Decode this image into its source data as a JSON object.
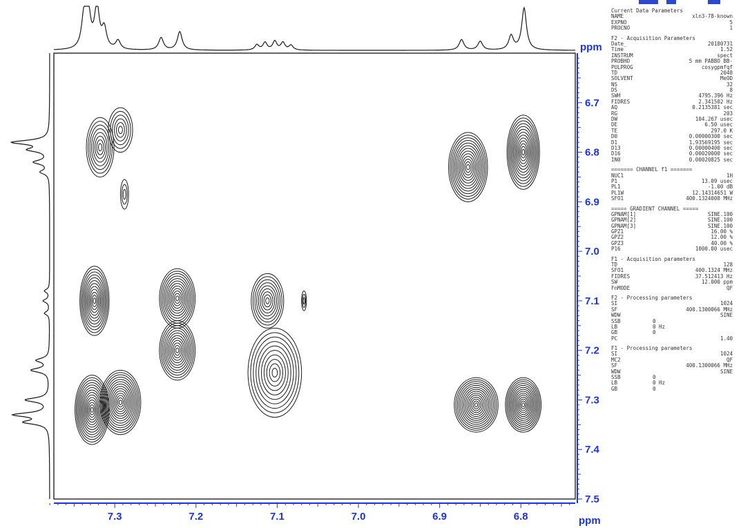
{
  "chart_data": {
    "type": "contour-2d-nmr",
    "x_axis": {
      "label": "ppm",
      "range": [
        7.375,
        6.733
      ],
      "ticks": [
        "7.3",
        "7.2",
        "7.1",
        "7.0",
        "6.9",
        "6.8"
      ],
      "tick_values": [
        7.3,
        7.2,
        7.1,
        7.0,
        6.9,
        6.8
      ]
    },
    "y_axis": {
      "label": "ppm",
      "range": [
        6.6,
        7.5
      ],
      "ticks": [
        "6.7",
        "6.8",
        "6.9",
        "7.0",
        "7.1",
        "7.2",
        "7.3",
        "7.4",
        "7.5"
      ],
      "tick_values": [
        6.7,
        6.8,
        6.9,
        7.0,
        7.1,
        7.2,
        7.3,
        7.4,
        7.5
      ]
    },
    "peaks": [
      {
        "x": 7.318,
        "y": 6.79,
        "rx": 0.017,
        "ry": 0.06,
        "levels": 8
      },
      {
        "x": 7.293,
        "y": 6.755,
        "rx": 0.015,
        "ry": 0.045,
        "levels": 6
      },
      {
        "x": 7.288,
        "y": 6.885,
        "rx": 0.005,
        "ry": 0.03,
        "levels": 3
      },
      {
        "x": 7.325,
        "y": 7.1,
        "rx": 0.018,
        "ry": 0.07,
        "levels": 12
      },
      {
        "x": 7.223,
        "y": 7.095,
        "rx": 0.022,
        "ry": 0.06,
        "levels": 12
      },
      {
        "x": 7.223,
        "y": 7.2,
        "rx": 0.022,
        "ry": 0.06,
        "levels": 12
      },
      {
        "x": 7.112,
        "y": 7.1,
        "rx": 0.02,
        "ry": 0.055,
        "levels": 9
      },
      {
        "x": 7.067,
        "y": 7.1,
        "rx": 0.003,
        "ry": 0.02,
        "levels": 3
      },
      {
        "x": 7.103,
        "y": 7.245,
        "rx": 0.033,
        "ry": 0.09,
        "levels": 10
      },
      {
        "x": 7.328,
        "y": 7.32,
        "rx": 0.021,
        "ry": 0.07,
        "levels": 14
      },
      {
        "x": 7.293,
        "y": 7.305,
        "rx": 0.025,
        "ry": 0.065,
        "levels": 14
      },
      {
        "x": 6.865,
        "y": 6.83,
        "rx": 0.024,
        "ry": 0.07,
        "levels": 13
      },
      {
        "x": 6.797,
        "y": 6.8,
        "rx": 0.02,
        "ry": 0.075,
        "levels": 13
      },
      {
        "x": 6.855,
        "y": 7.31,
        "rx": 0.027,
        "ry": 0.055,
        "levels": 14
      },
      {
        "x": 6.797,
        "y": 7.31,
        "rx": 0.022,
        "ry": 0.055,
        "levels": 14
      }
    ],
    "projection_1d_x": [
      {
        "x": 7.338,
        "h": 0.66,
        "w": 0.0035
      },
      {
        "x": 7.333,
        "h": 0.9,
        "w": 0.0035
      },
      {
        "x": 7.322,
        "h": 0.95,
        "w": 0.0035
      },
      {
        "x": 7.313,
        "h": 0.45,
        "w": 0.0035
      },
      {
        "x": 7.296,
        "h": 0.2,
        "w": 0.0035
      },
      {
        "x": 7.243,
        "h": 0.28,
        "w": 0.0035
      },
      {
        "x": 7.22,
        "h": 0.42,
        "w": 0.0035
      },
      {
        "x": 7.125,
        "h": 0.12,
        "w": 0.003
      },
      {
        "x": 7.115,
        "h": 0.17,
        "w": 0.003
      },
      {
        "x": 7.103,
        "h": 0.2,
        "w": 0.003
      },
      {
        "x": 7.093,
        "h": 0.17,
        "w": 0.003
      },
      {
        "x": 7.083,
        "h": 0.11,
        "w": 0.003
      },
      {
        "x": 6.873,
        "h": 0.24,
        "w": 0.0035
      },
      {
        "x": 6.85,
        "h": 0.2,
        "w": 0.0035
      },
      {
        "x": 6.812,
        "h": 0.32,
        "w": 0.0035
      },
      {
        "x": 6.796,
        "h": 0.95,
        "w": 0.0035
      }
    ],
    "projection_1d_y": [
      {
        "y": 6.78,
        "h": 0.85,
        "w": 0.005
      },
      {
        "y": 6.795,
        "h": 0.45,
        "w": 0.005
      },
      {
        "y": 6.82,
        "h": 0.35,
        "w": 0.005
      },
      {
        "y": 6.84,
        "h": 0.2,
        "w": 0.005
      },
      {
        "y": 7.08,
        "h": 0.12,
        "w": 0.004
      },
      {
        "y": 7.1,
        "h": 0.15,
        "w": 0.004
      },
      {
        "y": 7.125,
        "h": 0.12,
        "w": 0.004
      },
      {
        "y": 7.22,
        "h": 0.3,
        "w": 0.005
      },
      {
        "y": 7.24,
        "h": 0.42,
        "w": 0.005
      },
      {
        "y": 7.3,
        "h": 0.55,
        "w": 0.005
      },
      {
        "y": 7.33,
        "h": 0.8,
        "w": 0.005
      },
      {
        "y": 7.345,
        "h": 0.55,
        "w": 0.005
      }
    ],
    "ink_color": "#1a1a1a",
    "axis_color": "#1a33e6"
  },
  "parameters": [
    {
      "type": "head",
      "text": "Current Data Parameters"
    },
    {
      "type": "kv",
      "k": "NAME",
      "v": "xln3-78-known"
    },
    {
      "type": "kv",
      "k": "EXPNO",
      "v": "5"
    },
    {
      "type": "kv",
      "k": "PROCNO",
      "v": "1"
    },
    {
      "type": "gap"
    },
    {
      "type": "head",
      "text": "F2 - Acquisition Parameters"
    },
    {
      "type": "kv",
      "k": "Date_",
      "v": "20180731"
    },
    {
      "type": "kv",
      "k": "Time",
      "v": "1.52"
    },
    {
      "type": "kv",
      "k": "INSTRUM",
      "v": "spect"
    },
    {
      "type": "kv",
      "k": "PROBHD",
      "v": "5 mm PABBO BB-"
    },
    {
      "type": "kv",
      "k": "PULPROG",
      "v": "cosygpmfqf"
    },
    {
      "type": "kv",
      "k": "TD",
      "v": "2048"
    },
    {
      "type": "kv",
      "k": "SOLVENT",
      "v": "MeOD"
    },
    {
      "type": "kv",
      "k": "NS",
      "v": "32"
    },
    {
      "type": "kv",
      "k": "DS",
      "v": "8"
    },
    {
      "type": "kv",
      "k": "SWH",
      "v": "4795.396 Hz"
    },
    {
      "type": "kv",
      "k": "FIDRES",
      "v": "2.341502 Hz"
    },
    {
      "type": "kv",
      "k": "AQ",
      "v": "0.2135381 sec"
    },
    {
      "type": "kv",
      "k": "RG",
      "v": "203"
    },
    {
      "type": "kv",
      "k": "DW",
      "v": "104.267 usec"
    },
    {
      "type": "kv",
      "k": "DE",
      "v": "6.50 usec"
    },
    {
      "type": "kv",
      "k": "TE",
      "v": "297.0 K"
    },
    {
      "type": "kv",
      "k": "D0",
      "v": "0.00000300 sec"
    },
    {
      "type": "kv",
      "k": "D1",
      "v": "1.93569195 sec"
    },
    {
      "type": "kv",
      "k": "D13",
      "v": "0.00000400 sec"
    },
    {
      "type": "kv",
      "k": "D16",
      "v": "0.00020000 sec"
    },
    {
      "type": "kv",
      "k": "IN0",
      "v": "0.00020825 sec"
    },
    {
      "type": "gap"
    },
    {
      "type": "head",
      "text": "======= CHANNEL f1 ======="
    },
    {
      "type": "kv",
      "k": "NUC1",
      "v": "1H"
    },
    {
      "type": "kv",
      "k": "P1",
      "v": "13.09 usec"
    },
    {
      "type": "kv",
      "k": "PL1",
      "v": "-1.00 dB"
    },
    {
      "type": "kv",
      "k": "PL1W",
      "v": "12.14314651 W"
    },
    {
      "type": "kv",
      "k": "SFO1",
      "v": "400.1324008 MHz"
    },
    {
      "type": "gap"
    },
    {
      "type": "head",
      "text": "===== GRADIENT CHANNEL ====="
    },
    {
      "type": "kv",
      "k": "GPNAM[1]",
      "v": "SINE.100"
    },
    {
      "type": "kv",
      "k": "GPNAM[2]",
      "v": "SINE.100"
    },
    {
      "type": "kv",
      "k": "GPNAM[3]",
      "v": "SINE.100"
    },
    {
      "type": "kv",
      "k": "GPZ1",
      "v": "16.00 %"
    },
    {
      "type": "kv",
      "k": "GPZ2",
      "v": "12.00 %"
    },
    {
      "type": "kv",
      "k": "GPZ3",
      "v": "40.00 %"
    },
    {
      "type": "kv",
      "k": "P16",
      "v": "1000.00 usec"
    },
    {
      "type": "gap"
    },
    {
      "type": "head",
      "text": "F1 - Acquisition parameters"
    },
    {
      "type": "kv",
      "k": "TD",
      "v": "128"
    },
    {
      "type": "kv",
      "k": "SFO1",
      "v": "400.1324 MHz"
    },
    {
      "type": "kv",
      "k": "FIDRES",
      "v": "37.512413 Hz"
    },
    {
      "type": "kv",
      "k": "SW",
      "v": "12.000 ppm"
    },
    {
      "type": "kv",
      "k": "FnMODE",
      "v": "QF"
    },
    {
      "type": "gap"
    },
    {
      "type": "head",
      "text": "F2 - Processing parameters"
    },
    {
      "type": "kv",
      "k": "SI",
      "v": "1024"
    },
    {
      "type": "kv",
      "k": "SF",
      "v": "400.1300066 MHz"
    },
    {
      "type": "kv",
      "k": "WDW",
      "v": "SINE"
    },
    {
      "type": "kv3",
      "k": "SSB",
      "v": "0"
    },
    {
      "type": "kv3",
      "k": "LB",
      "v": "0 Hz"
    },
    {
      "type": "kv3",
      "k": "GB",
      "v": "0"
    },
    {
      "type": "kv",
      "k": "PC",
      "v": "1.40"
    },
    {
      "type": "gap"
    },
    {
      "type": "head",
      "text": "F1 - Processing parameters"
    },
    {
      "type": "kv",
      "k": "SI",
      "v": "1024"
    },
    {
      "type": "kv",
      "k": "MC2",
      "v": "QF"
    },
    {
      "type": "kv",
      "k": "SF",
      "v": "400.1300066 MHz"
    },
    {
      "type": "kv",
      "k": "WDW",
      "v": "SINE"
    },
    {
      "type": "kv3",
      "k": "SSB",
      "v": "0"
    },
    {
      "type": "kv3",
      "k": "LB",
      "v": "0 Hz"
    },
    {
      "type": "kv3",
      "k": "GB",
      "v": "0"
    }
  ]
}
